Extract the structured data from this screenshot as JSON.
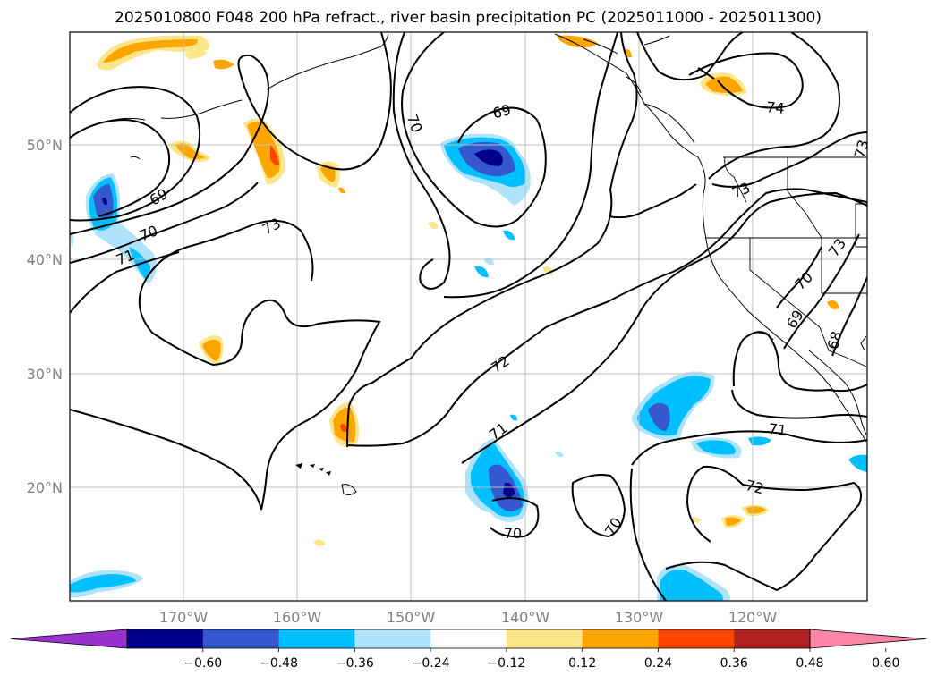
{
  "title": "2025010800 F048 200 hPa refract., river basin precipitation PC (2025011000 - 2025011300)",
  "lat_labels": [
    "50°N",
    "40°N",
    "30°N",
    "20°N"
  ],
  "lon_labels": [
    "170°W",
    "160°W",
    "150°W",
    "140°W",
    "130°W",
    "120°W"
  ],
  "colorbar": {
    "colors": [
      "#9932cc",
      "#00008b",
      "#3558cf",
      "#00bfff",
      "#aee3fa",
      "#ffffff",
      "#fde68a",
      "#ffa500",
      "#ff4500",
      "#b22222",
      "#ff85a8"
    ],
    "tick_labels": [
      "−0.60",
      "−0.48",
      "−0.36",
      "−0.24",
      "−0.12",
      "0.12",
      "0.24",
      "0.36",
      "0.48",
      "0.60"
    ]
  },
  "contour_labels": [
    "69",
    "70",
    "71",
    "73",
    "69",
    "70",
    "74",
    "73",
    "72",
    "71",
    "70",
    "71",
    "72",
    "70",
    "69",
    "68",
    "73",
    "73"
  ]
}
